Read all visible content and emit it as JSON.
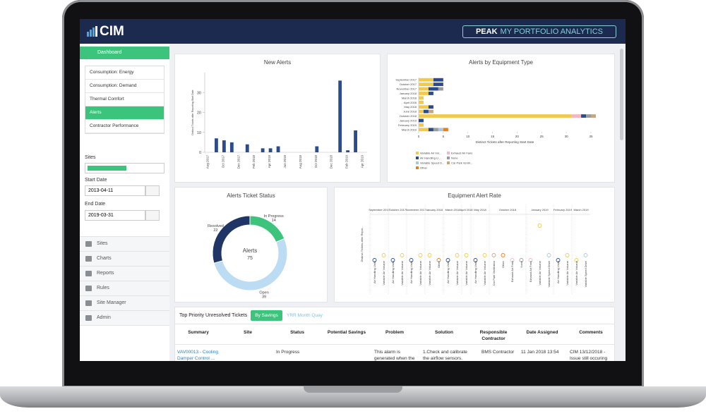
{
  "header": {
    "logo": "CIM",
    "brand": "PEAK",
    "product": "MY PORTFOLIO ANALYTICS"
  },
  "sidebar": {
    "dashboard": "Dashboard",
    "menu": [
      "Consumption: Energy",
      "Consumption: Demand",
      "Thermal Comfort",
      "Alerts",
      "Contractor Performance"
    ],
    "sites_label": "Sites",
    "start_date_label": "Start Date",
    "start_date": "2013-04-11",
    "end_date_label": "End Date",
    "end_date": "2019-03-31",
    "nav": [
      "Sites",
      "Charts",
      "Reports",
      "Rules",
      "Site Manager",
      "Admin"
    ]
  },
  "chart_data": [
    {
      "type": "bar",
      "title": "New Alerts",
      "y_label": "Distinct Tickets after Reporting Start Date",
      "color": "#2b4c8c",
      "categories": [
        "Aug 2017",
        null,
        "Oct 2017",
        null,
        "Dec 2017",
        null,
        "Feb 2018",
        null,
        "Apr 2018",
        null,
        "Jun 2018",
        null,
        "Aug 2018",
        null,
        "Oct 2018",
        null,
        "Dec 2018",
        null,
        "Feb 2019",
        null,
        "Apr 2019"
      ],
      "values": [
        0,
        7,
        6,
        5,
        0,
        4,
        0,
        2,
        2,
        3,
        0,
        0,
        0,
        0,
        3,
        0,
        0,
        36,
        1,
        11,
        0
      ],
      "ylim": [
        0,
        40
      ],
      "yticks": [
        0,
        10,
        20,
        30
      ]
    },
    {
      "type": "bar",
      "orientation": "horizontal",
      "stacked": true,
      "title": "Alerts by Equipment Type",
      "x_label": "Distinct Tickets after Reporting Start Date",
      "categories": [
        "September 2017",
        "October 2017",
        "November 2017",
        "January 2018",
        "March 2018",
        "April 2018",
        "May 2018",
        "June 2018",
        "October 2018",
        "January 2019",
        "February 2019",
        "March 2019"
      ],
      "series": [
        {
          "name": "Variable Air Vol...",
          "color": "#f2c94c",
          "values": [
            3,
            3,
            2,
            2,
            1,
            1,
            2,
            1,
            31,
            0,
            1,
            2
          ]
        },
        {
          "name": "Exhaust Air Fans",
          "color": "#f4b6c2",
          "values": [
            0,
            0,
            0,
            0,
            0,
            0,
            0,
            0,
            2,
            0,
            0,
            0
          ]
        },
        {
          "name": "Air Handling U...",
          "color": "#2b4c8c",
          "values": [
            2,
            2,
            2,
            1,
            0,
            0,
            1,
            1,
            1,
            1,
            0,
            1
          ]
        },
        {
          "name": "None",
          "color": "#9b9b9b",
          "values": [
            0,
            0,
            1,
            0,
            0,
            0,
            0,
            0,
            1,
            0,
            0,
            1
          ]
        },
        {
          "name": "Variable Speed D...",
          "color": "#a6c8e6",
          "values": [
            0,
            0,
            0,
            0,
            0,
            0,
            0,
            0,
            0,
            0,
            0,
            1
          ]
        },
        {
          "name": "Car Park Ventil...",
          "color": "#c9a57a",
          "values": [
            0,
            0,
            0,
            0,
            0,
            0,
            0,
            1,
            1,
            0,
            0,
            0
          ]
        },
        {
          "name": "Other",
          "color": "#e67e22",
          "values": [
            0,
            0,
            0,
            0,
            0,
            0,
            0,
            0,
            0,
            0,
            0,
            1
          ]
        }
      ],
      "xlim": [
        0,
        35
      ],
      "xticks": [
        0,
        5,
        10,
        15,
        20,
        25,
        30,
        35
      ]
    },
    {
      "type": "donut",
      "title": "Alerts Ticket Status",
      "center_label": "Alerts",
      "center_value": 75,
      "categories": [
        "In Progress",
        "Open",
        "Resolved"
      ],
      "values": [
        14,
        39,
        22
      ],
      "colors": [
        "#3cc47c",
        "#bcdcf3",
        "#1f3566"
      ]
    },
    {
      "type": "dot",
      "title": "Equipment Alert Rate",
      "y_label": "Distinct Tickets after Repor...",
      "months": [
        "September 2017",
        "September 2017",
        "October 2017",
        "October 2017",
        "November 2017",
        "November 2017",
        "January 2018",
        "January 2018",
        "March 2018",
        "March 2018",
        "April 2018",
        "May 2018",
        "May 2018",
        "October 2018",
        "October 2018",
        "October 2018",
        "October 2018",
        "January 2019",
        "January 2019",
        "January 2019",
        "February 2019",
        "February 2019",
        "March 2019",
        "March 2019"
      ],
      "categories": [
        "Air Handling Units",
        "Variable Air Volume",
        "Air Handling Units",
        "Variable Air Volume",
        "Air Handling Units",
        "Variable Air Volume",
        "Variable Air Volume",
        "Other",
        "Air Handling Units",
        "Variable Air Volume",
        "Variable Air Volume",
        "Air Handling Units",
        "Variable Air Volume",
        "Car Park Ventilation",
        "Other",
        "Exhaust Air Fans",
        "None",
        "Exhaust Air Fans",
        "Variable Air Volume",
        "Variable Speed Drive",
        "Air Handling Units",
        "Variable Air Volume",
        "Variable Air Volume",
        "Variable Speed Drive"
      ],
      "values": [
        1,
        2,
        1,
        2,
        1,
        2,
        2,
        1,
        1,
        2,
        2,
        1,
        2,
        2,
        2,
        1,
        1,
        1,
        8,
        2,
        1,
        2,
        1,
        2
      ],
      "colors": [
        "#2b4c8c",
        "#f2c94c",
        "#2b4c8c",
        "#f2c94c",
        "#2b4c8c",
        "#f2c94c",
        "#f2c94c",
        "#e67e22",
        "#2b4c8c",
        "#f2c94c",
        "#f2c94c",
        "#2b4c8c",
        "#f2c94c",
        "#c9a57a",
        "#e67e22",
        "#f4b6c2",
        "#9b9b9b",
        "#f4b6c2",
        "#f2c94c",
        "#a6c8e6",
        "#2b4c8c",
        "#f2c94c",
        "#f2c94c",
        "#a6c8e6"
      ],
      "ylim": [
        0,
        10
      ]
    }
  ],
  "table": {
    "title": "Top Priority Unresolved Tickets",
    "buttons": [
      "By Savings",
      "YRR Month Quay"
    ],
    "columns": [
      "Summary",
      "Site",
      "Status",
      "Potential Savings",
      "Problem",
      "Solution",
      "Responsible Contractor",
      "Date Assigned",
      "Comments"
    ],
    "rows": [
      {
        "summary": "VAV00013 - Cooling Damper Control ...",
        "status": "In Progress",
        "problem": "This alarm is generated when the",
        "solution": "1.Check and calibrate the airflow sensors.",
        "contractor": "BMS Contractor",
        "date_assigned": "11 Jan 2018 13:54",
        "comments": "CIM 13/12/2018 - Issue still occuring"
      }
    ]
  }
}
